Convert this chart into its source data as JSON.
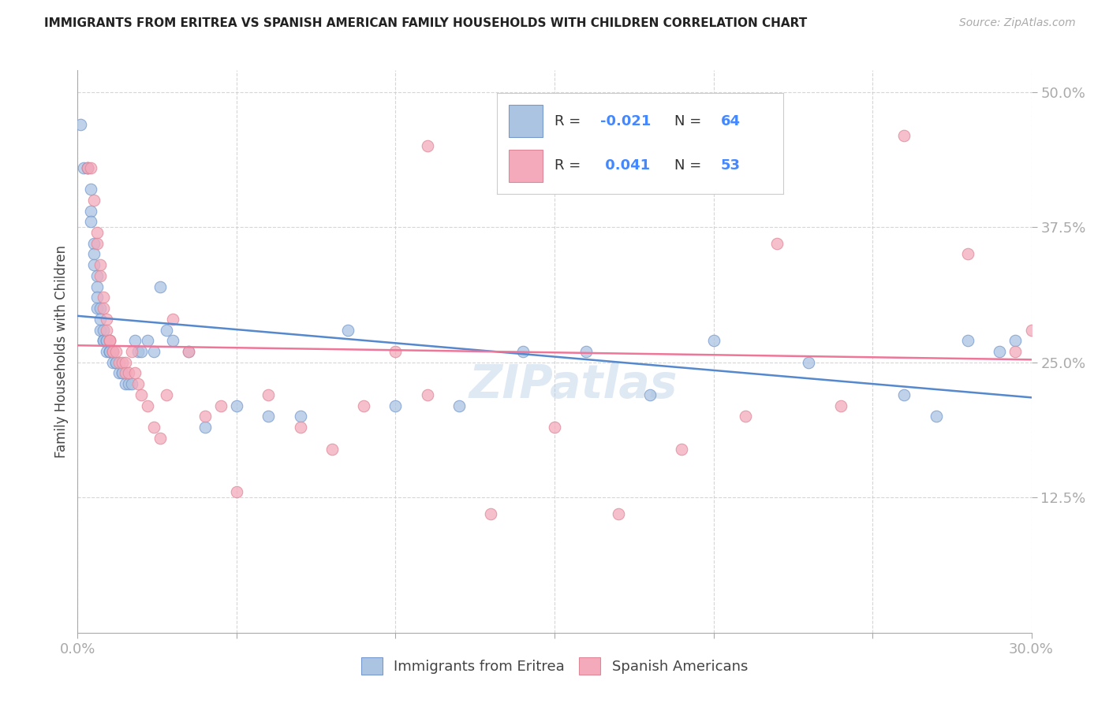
{
  "title": "IMMIGRANTS FROM ERITREA VS SPANISH AMERICAN FAMILY HOUSEHOLDS WITH CHILDREN CORRELATION CHART",
  "source": "Source: ZipAtlas.com",
  "ylabel": "Family Households with Children",
  "x_min": 0.0,
  "x_max": 0.3,
  "y_min": 0.0,
  "y_max": 0.52,
  "y_ticks": [
    0.125,
    0.25,
    0.375,
    0.5
  ],
  "y_tick_labels": [
    "12.5%",
    "25.0%",
    "37.5%",
    "50.0%"
  ],
  "x_ticks": [
    0.0,
    0.05,
    0.1,
    0.15,
    0.2,
    0.25,
    0.3
  ],
  "color_blue": "#aac4e2",
  "color_pink": "#f4aabb",
  "line_blue": "#5588cc",
  "line_pink": "#ee7799",
  "R1": -0.021,
  "N1": 64,
  "R2": 0.041,
  "N2": 53,
  "blue_x": [
    0.001,
    0.002,
    0.003,
    0.003,
    0.004,
    0.004,
    0.004,
    0.005,
    0.005,
    0.005,
    0.006,
    0.006,
    0.006,
    0.006,
    0.007,
    0.007,
    0.007,
    0.008,
    0.008,
    0.008,
    0.008,
    0.009,
    0.009,
    0.009,
    0.01,
    0.01,
    0.01,
    0.01,
    0.011,
    0.011,
    0.012,
    0.012,
    0.013,
    0.014,
    0.014,
    0.015,
    0.016,
    0.017,
    0.018,
    0.019,
    0.02,
    0.022,
    0.024,
    0.026,
    0.028,
    0.03,
    0.035,
    0.04,
    0.05,
    0.06,
    0.07,
    0.085,
    0.1,
    0.12,
    0.14,
    0.16,
    0.18,
    0.2,
    0.23,
    0.26,
    0.27,
    0.28,
    0.29,
    0.295
  ],
  "blue_y": [
    0.47,
    0.43,
    0.43,
    0.43,
    0.41,
    0.39,
    0.38,
    0.36,
    0.35,
    0.34,
    0.33,
    0.32,
    0.31,
    0.3,
    0.3,
    0.29,
    0.28,
    0.28,
    0.27,
    0.27,
    0.27,
    0.27,
    0.27,
    0.26,
    0.26,
    0.26,
    0.26,
    0.26,
    0.26,
    0.25,
    0.25,
    0.25,
    0.24,
    0.24,
    0.24,
    0.23,
    0.23,
    0.23,
    0.27,
    0.26,
    0.26,
    0.27,
    0.26,
    0.32,
    0.28,
    0.27,
    0.26,
    0.19,
    0.21,
    0.2,
    0.2,
    0.28,
    0.21,
    0.21,
    0.26,
    0.26,
    0.22,
    0.27,
    0.25,
    0.22,
    0.2,
    0.27,
    0.26,
    0.27
  ],
  "pink_x": [
    0.003,
    0.004,
    0.005,
    0.006,
    0.006,
    0.007,
    0.007,
    0.008,
    0.008,
    0.009,
    0.009,
    0.01,
    0.01,
    0.01,
    0.011,
    0.011,
    0.012,
    0.013,
    0.014,
    0.015,
    0.015,
    0.016,
    0.017,
    0.018,
    0.019,
    0.02,
    0.022,
    0.024,
    0.026,
    0.028,
    0.03,
    0.035,
    0.04,
    0.045,
    0.05,
    0.06,
    0.07,
    0.08,
    0.09,
    0.1,
    0.11,
    0.13,
    0.15,
    0.17,
    0.19,
    0.21,
    0.24,
    0.26,
    0.28,
    0.295,
    0.11,
    0.22,
    0.3
  ],
  "pink_y": [
    0.43,
    0.43,
    0.4,
    0.37,
    0.36,
    0.34,
    0.33,
    0.31,
    0.3,
    0.29,
    0.28,
    0.27,
    0.27,
    0.27,
    0.26,
    0.26,
    0.26,
    0.25,
    0.25,
    0.25,
    0.24,
    0.24,
    0.26,
    0.24,
    0.23,
    0.22,
    0.21,
    0.19,
    0.18,
    0.22,
    0.29,
    0.26,
    0.2,
    0.21,
    0.13,
    0.22,
    0.19,
    0.17,
    0.21,
    0.26,
    0.22,
    0.11,
    0.19,
    0.11,
    0.17,
    0.2,
    0.21,
    0.46,
    0.35,
    0.26,
    0.45,
    0.36,
    0.28
  ]
}
